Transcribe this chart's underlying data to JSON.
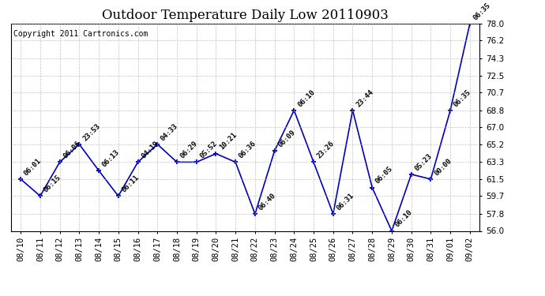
{
  "title": "Outdoor Temperature Daily Low 20110903",
  "copyright": "Copyright 2011 Cartronics.com",
  "dates": [
    "08/10",
    "08/11",
    "08/12",
    "08/13",
    "08/14",
    "08/15",
    "08/16",
    "08/17",
    "08/18",
    "08/19",
    "08/20",
    "08/21",
    "08/22",
    "08/23",
    "08/24",
    "08/25",
    "08/26",
    "08/27",
    "08/28",
    "08/29",
    "08/30",
    "08/31",
    "09/01",
    "09/02"
  ],
  "values": [
    61.5,
    59.7,
    63.3,
    65.2,
    62.4,
    59.7,
    63.3,
    65.2,
    63.3,
    63.3,
    64.2,
    63.3,
    57.8,
    64.5,
    68.8,
    63.3,
    57.8,
    68.8,
    60.6,
    56.0,
    62.0,
    61.5,
    68.8,
    78.0
  ],
  "labels": [
    "06:01",
    "06:15",
    "06:06",
    "23:53",
    "06:13",
    "06:11",
    "04:19",
    "04:33",
    "06:29",
    "05:52",
    "10:21",
    "06:36",
    "06:40",
    "06:09",
    "06:10",
    "23:26",
    "06:31",
    "23:44",
    "06:05",
    "06:10",
    "05:23",
    "00:00",
    "06:35",
    "06:35"
  ],
  "ylim": [
    56.0,
    78.0
  ],
  "yticks": [
    56.0,
    57.8,
    59.7,
    61.5,
    63.3,
    65.2,
    67.0,
    68.8,
    70.7,
    72.5,
    74.3,
    76.2,
    78.0
  ],
  "line_color": "#0000bb",
  "marker_color": "#0000bb",
  "bg_color": "#ffffff",
  "grid_color": "#aaaaaa",
  "title_fontsize": 12,
  "label_fontsize": 6.5,
  "tick_fontsize": 7.5,
  "copyright_fontsize": 7
}
